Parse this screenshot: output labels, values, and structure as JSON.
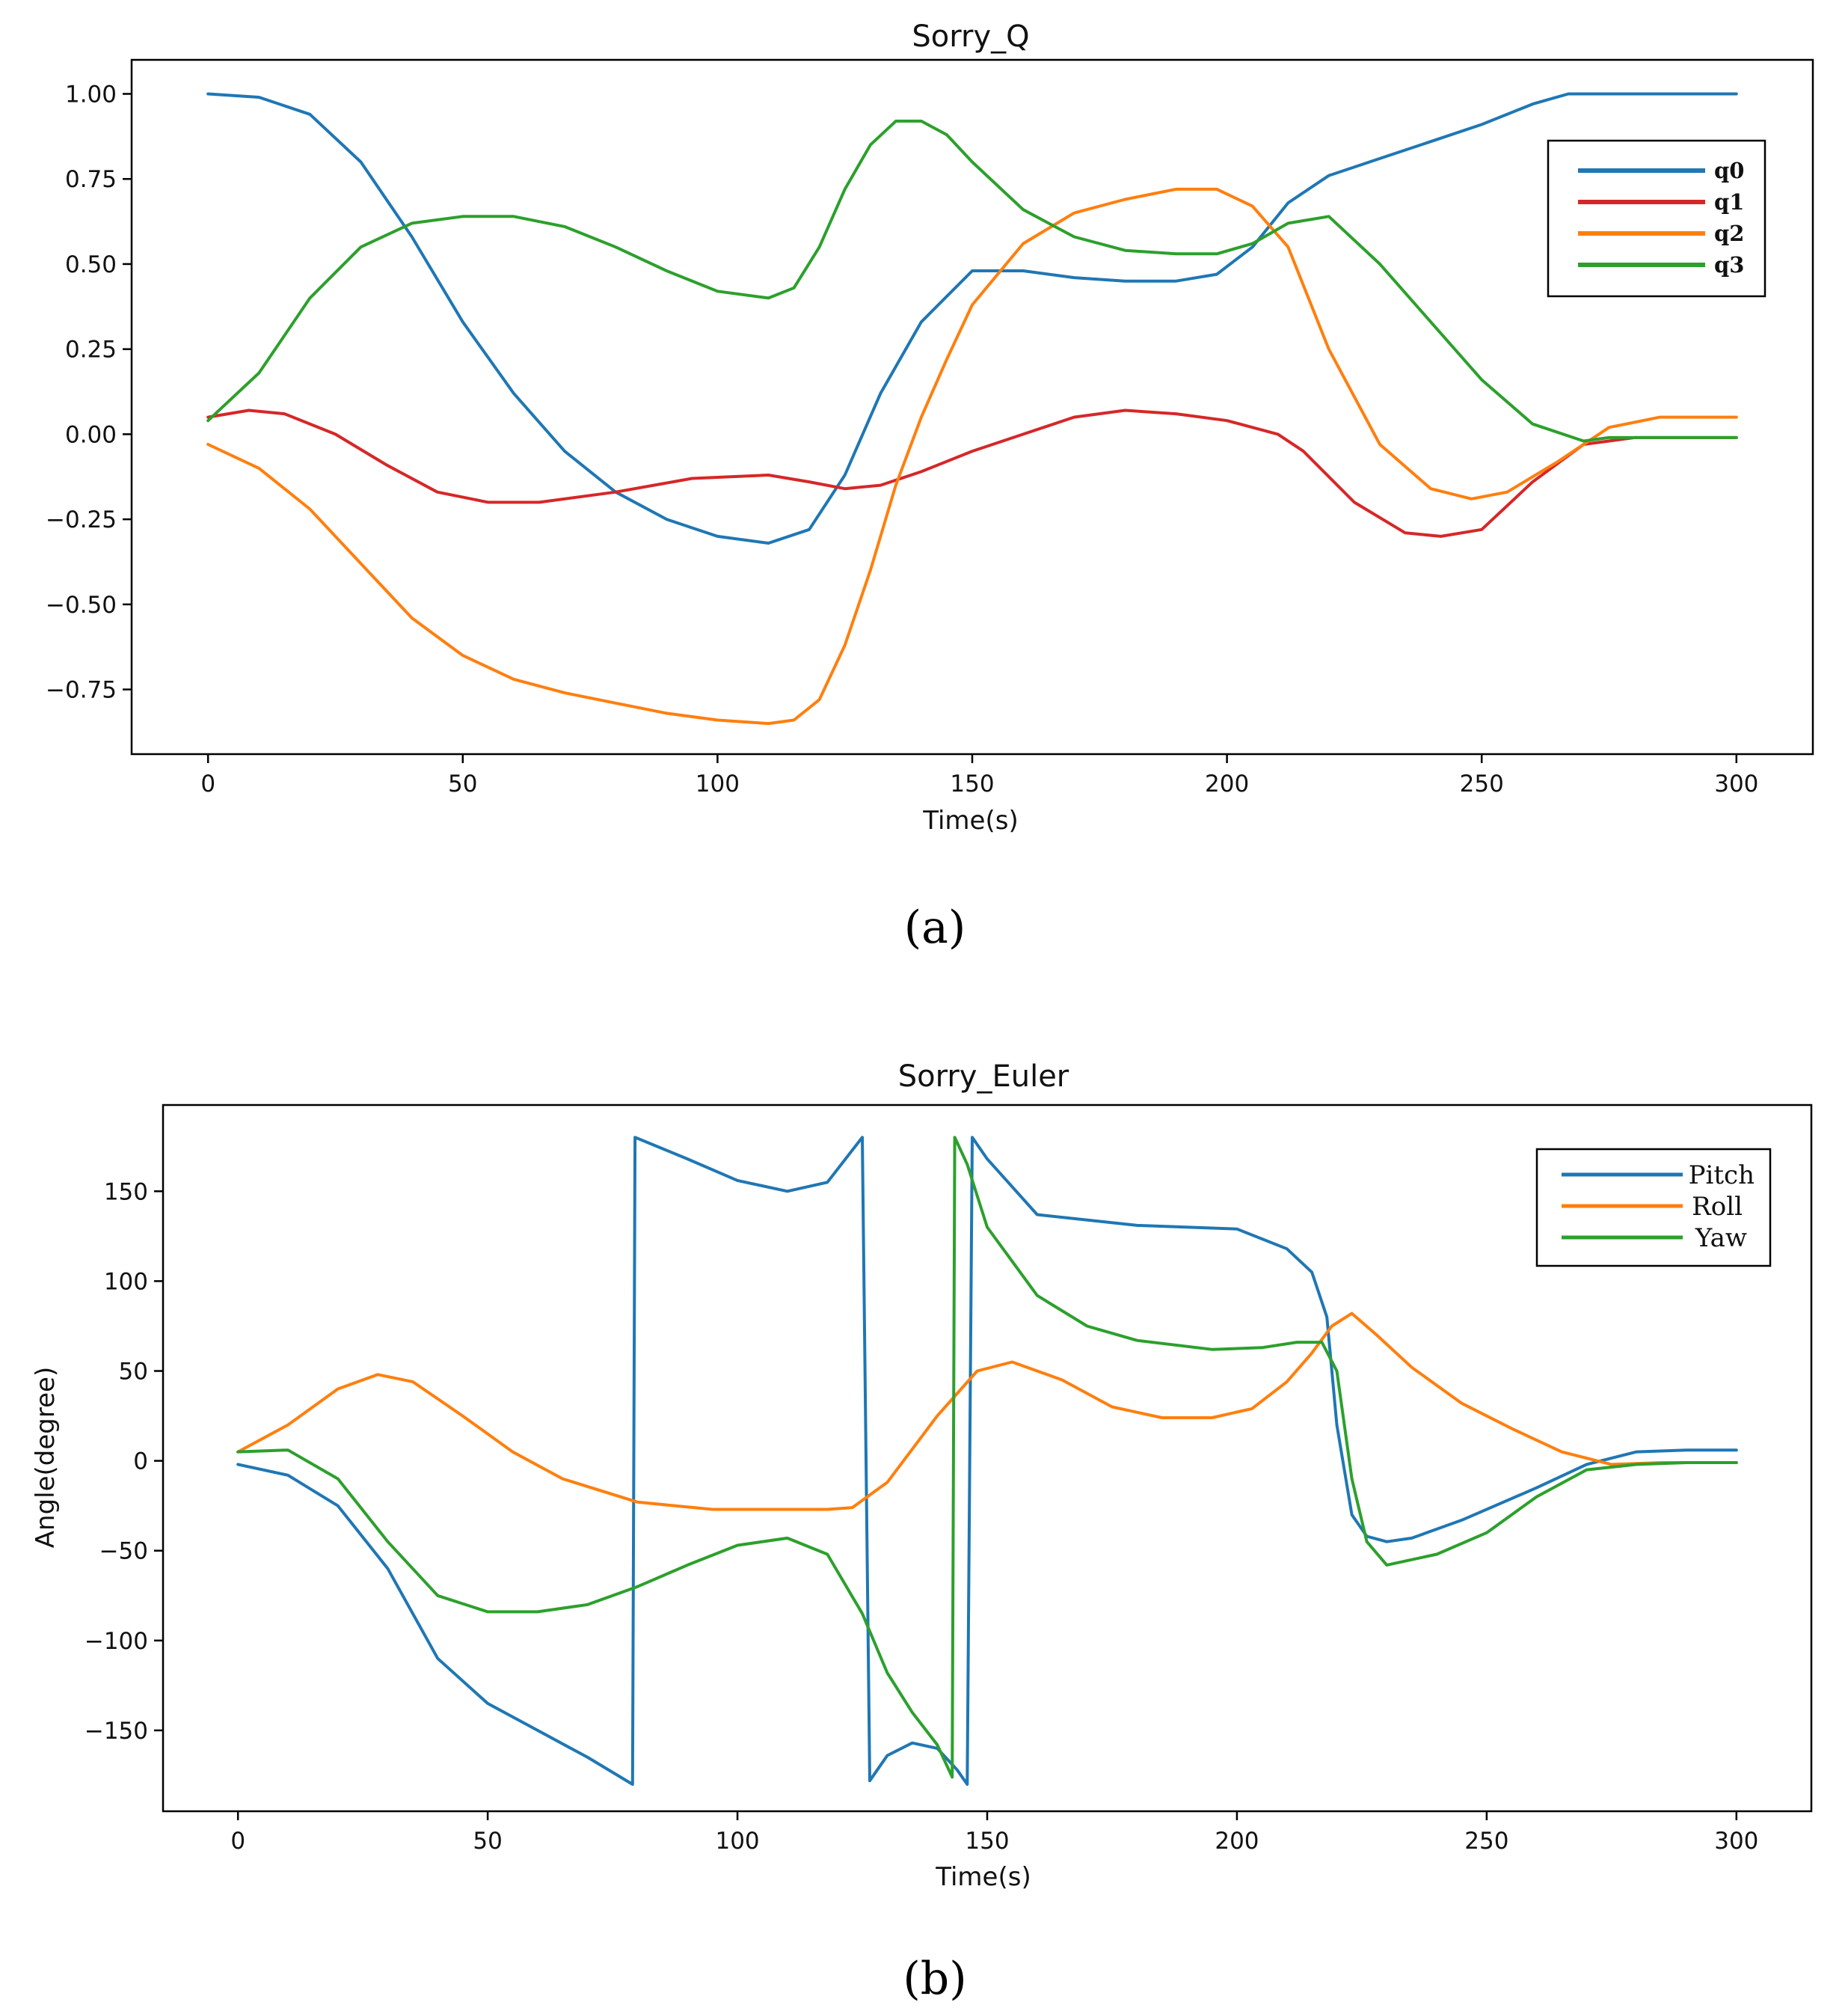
{
  "figure": {
    "panel_labels": [
      "(a)",
      "(b)"
    ]
  },
  "chart_data": [
    {
      "type": "line",
      "title": "Sorry_Q",
      "xlabel": "Time(s)",
      "ylabel": "",
      "xlim": [
        -15,
        315
      ],
      "ylim": [
        -0.94,
        1.1
      ],
      "xticks": [
        0,
        50,
        100,
        150,
        200,
        250,
        300
      ],
      "xtick_labels": [
        "0",
        "50",
        "100",
        "150",
        "200",
        "250",
        "300"
      ],
      "yticks": [
        1.0,
        0.75,
        0.5,
        0.25,
        0.0,
        -0.25,
        -0.5,
        -0.75
      ],
      "ytick_labels": [
        "1.00",
        "0.75",
        "0.50",
        "0.25",
        "0.00",
        "−0.25",
        "−0.50",
        "−0.75"
      ],
      "legend_position": "top-right",
      "grid": false,
      "series": [
        {
          "name": "q0",
          "color": "#1f77b4",
          "x": [
            0,
            10,
            20,
            30,
            40,
            50,
            60,
            70,
            80,
            90,
            100,
            110,
            118,
            125,
            132,
            140,
            150,
            160,
            170,
            180,
            190,
            198,
            205,
            212,
            220,
            230,
            240,
            250,
            260,
            267,
            275,
            285,
            300
          ],
          "y": [
            1.0,
            0.99,
            0.94,
            0.8,
            0.58,
            0.33,
            0.12,
            -0.05,
            -0.17,
            -0.25,
            -0.3,
            -0.32,
            -0.28,
            -0.12,
            0.12,
            0.33,
            0.48,
            0.48,
            0.46,
            0.45,
            0.45,
            0.47,
            0.55,
            0.68,
            0.76,
            0.81,
            0.86,
            0.91,
            0.97,
            1.0,
            1.0,
            1.0,
            1.0
          ]
        },
        {
          "name": "q1",
          "color": "#d62728",
          "x": [
            0,
            8,
            15,
            25,
            35,
            45,
            55,
            65,
            80,
            95,
            110,
            118,
            125,
            132,
            140,
            150,
            160,
            170,
            180,
            190,
            200,
            210,
            215,
            225,
            235,
            242,
            250,
            260,
            270,
            280,
            300
          ],
          "y": [
            0.05,
            0.07,
            0.06,
            0.0,
            -0.09,
            -0.17,
            -0.2,
            -0.2,
            -0.17,
            -0.13,
            -0.12,
            -0.14,
            -0.16,
            -0.15,
            -0.11,
            -0.05,
            0.0,
            0.05,
            0.07,
            0.06,
            0.04,
            0.0,
            -0.05,
            -0.2,
            -0.29,
            -0.3,
            -0.28,
            -0.14,
            -0.03,
            -0.01,
            -0.01
          ]
        },
        {
          "name": "q2",
          "color": "#ff7f0e",
          "x": [
            0,
            10,
            20,
            30,
            40,
            50,
            60,
            70,
            80,
            90,
            100,
            110,
            115,
            120,
            125,
            130,
            135,
            140,
            145,
            150,
            160,
            170,
            180,
            190,
            198,
            205,
            212,
            220,
            230,
            240,
            248,
            255,
            265,
            275,
            285,
            300
          ],
          "y": [
            -0.03,
            -0.1,
            -0.22,
            -0.38,
            -0.54,
            -0.65,
            -0.72,
            -0.76,
            -0.79,
            -0.82,
            -0.84,
            -0.85,
            -0.84,
            -0.78,
            -0.62,
            -0.4,
            -0.15,
            0.05,
            0.22,
            0.38,
            0.56,
            0.65,
            0.69,
            0.72,
            0.72,
            0.67,
            0.55,
            0.25,
            -0.03,
            -0.16,
            -0.19,
            -0.17,
            -0.08,
            0.02,
            0.05,
            0.05
          ]
        },
        {
          "name": "q3",
          "color": "#2ca02c",
          "x": [
            0,
            10,
            20,
            30,
            40,
            50,
            60,
            70,
            80,
            90,
            100,
            110,
            115,
            120,
            125,
            130,
            135,
            140,
            145,
            150,
            160,
            170,
            180,
            190,
            198,
            205,
            212,
            220,
            230,
            240,
            250,
            260,
            270,
            275,
            285,
            300
          ],
          "y": [
            0.04,
            0.18,
            0.4,
            0.55,
            0.62,
            0.64,
            0.64,
            0.61,
            0.55,
            0.48,
            0.42,
            0.4,
            0.43,
            0.55,
            0.72,
            0.85,
            0.92,
            0.92,
            0.88,
            0.8,
            0.66,
            0.58,
            0.54,
            0.53,
            0.53,
            0.56,
            0.62,
            0.64,
            0.5,
            0.33,
            0.16,
            0.03,
            -0.02,
            -0.01,
            -0.01,
            -0.01
          ]
        }
      ]
    },
    {
      "type": "line",
      "title": "Sorry_Euler",
      "xlabel": "Time(s)",
      "ylabel": "Angle(degree)",
      "xlim": [
        -15,
        315
      ],
      "ylim": [
        -195,
        198
      ],
      "xticks": [
        0,
        50,
        100,
        150,
        200,
        250,
        300
      ],
      "xtick_labels": [
        "0",
        "50",
        "100",
        "150",
        "200",
        "250",
        "300"
      ],
      "yticks": [
        150,
        100,
        50,
        0,
        -50,
        -100,
        -150
      ],
      "ytick_labels": [
        "150",
        "100",
        "50",
        "0",
        "−50",
        "−100",
        "−150"
      ],
      "legend_position": "top-right",
      "grid": false,
      "series": [
        {
          "name": "Pitch",
          "color": "#1f77b4",
          "x": [
            0,
            10,
            20,
            30,
            40,
            50,
            60,
            70,
            79,
            79.5,
            90,
            100,
            110,
            118,
            125,
            126.5,
            130,
            135,
            140,
            144,
            146,
            147,
            150,
            160,
            180,
            200,
            210,
            215,
            218,
            220,
            223,
            226,
            230,
            235,
            245,
            260,
            270,
            280,
            290,
            300
          ],
          "y": [
            -2,
            -8,
            -25,
            -60,
            -110,
            -135,
            -150,
            -165,
            -180,
            180,
            168,
            156,
            150,
            155,
            180,
            -178,
            -164,
            -157,
            -160,
            -172,
            -180,
            180,
            168,
            137,
            131,
            129,
            118,
            105,
            80,
            20,
            -30,
            -42,
            -45,
            -43,
            -33,
            -15,
            -2,
            5,
            6,
            6
          ]
        },
        {
          "name": "Roll",
          "color": "#ff7f0e",
          "x": [
            0,
            10,
            20,
            28,
            35,
            45,
            55,
            65,
            80,
            95,
            110,
            118,
            123,
            130,
            140,
            148,
            155,
            165,
            175,
            185,
            195,
            203,
            210,
            215,
            219,
            223,
            228,
            235,
            245,
            255,
            265,
            275,
            285,
            300
          ],
          "y": [
            5,
            20,
            40,
            48,
            44,
            25,
            5,
            -10,
            -23,
            -27,
            -27,
            -27,
            -26,
            -12,
            25,
            50,
            55,
            45,
            30,
            24,
            24,
            29,
            44,
            60,
            75,
            82,
            70,
            52,
            32,
            18,
            5,
            -2,
            -1,
            -1
          ]
        },
        {
          "name": "Yaw",
          "color": "#2ca02c",
          "x": [
            0,
            10,
            20,
            30,
            40,
            50,
            60,
            70,
            80,
            90,
            100,
            110,
            118,
            125,
            130,
            135,
            140,
            143,
            143.5,
            146,
            150,
            160,
            170,
            180,
            195,
            205,
            212,
            217,
            220,
            223,
            226,
            230,
            240,
            250,
            260,
            270,
            280,
            290,
            300
          ],
          "y": [
            5,
            6,
            -10,
            -45,
            -75,
            -84,
            -84,
            -80,
            -70,
            -58,
            -47,
            -43,
            -52,
            -85,
            -118,
            -140,
            -158,
            -176,
            180,
            165,
            130,
            92,
            75,
            67,
            62,
            63,
            66,
            66,
            50,
            -10,
            -45,
            -58,
            -52,
            -40,
            -20,
            -5,
            -2,
            -1,
            -1
          ]
        }
      ]
    }
  ]
}
